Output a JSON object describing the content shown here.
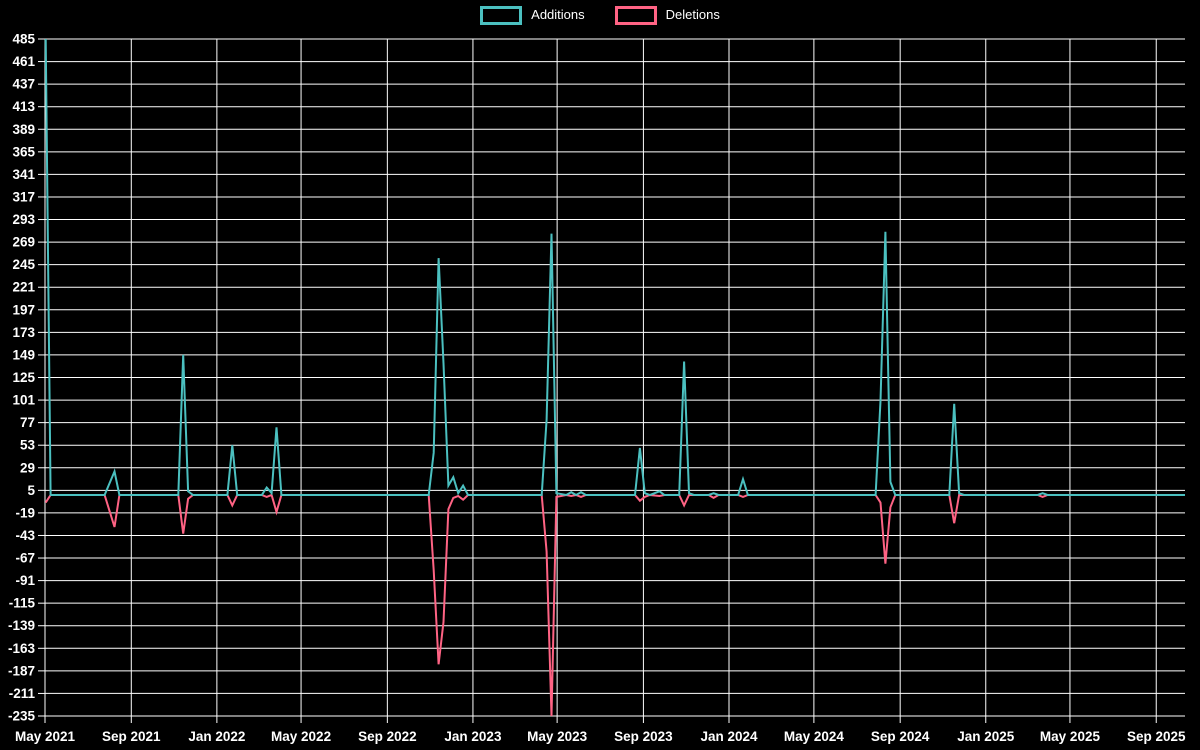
{
  "legend": {
    "items": [
      {
        "label": "Additions",
        "color": "#4bc0c0"
      },
      {
        "label": "Deletions",
        "color": "#ff6384"
      }
    ]
  },
  "chart_data": {
    "type": "line",
    "title": "",
    "xlabel": "",
    "ylabel": "",
    "legend_position": "top",
    "grid": true,
    "background_color": "#000000",
    "grid_color": "#ffffff",
    "text_color": "#ffffff",
    "ylim": [
      -235,
      485
    ],
    "y_tick_step": 24,
    "y_ticks": [
      485,
      461,
      437,
      413,
      389,
      365,
      341,
      317,
      293,
      269,
      245,
      221,
      197,
      173,
      149,
      125,
      101,
      77,
      53,
      29,
      5,
      -19,
      -43,
      -67,
      -91,
      -115,
      -139,
      -163,
      -187,
      -211,
      -235
    ],
    "x_domain": [
      "2021-05-01",
      "2025-10-12"
    ],
    "x_ticks": [
      {
        "label": "May 2021",
        "date": "2021-05-01"
      },
      {
        "label": "Sep 2021",
        "date": "2021-09-01"
      },
      {
        "label": "Jan 2022",
        "date": "2022-01-01"
      },
      {
        "label": "May 2022",
        "date": "2022-05-01"
      },
      {
        "label": "Sep 2022",
        "date": "2022-09-01"
      },
      {
        "label": "Jan 2023",
        "date": "2023-01-01"
      },
      {
        "label": "May 2023",
        "date": "2023-05-01"
      },
      {
        "label": "Sep 2023",
        "date": "2023-09-01"
      },
      {
        "label": "Jan 2024",
        "date": "2024-01-01"
      },
      {
        "label": "May 2024",
        "date": "2024-05-01"
      },
      {
        "label": "Sep 2024",
        "date": "2024-09-01"
      },
      {
        "label": "Jan 2025",
        "date": "2025-01-01"
      },
      {
        "label": "May 2025",
        "date": "2025-05-01"
      },
      {
        "label": "Sep 2025",
        "date": "2025-09-01"
      }
    ],
    "series": [
      {
        "name": "Additions",
        "color": "#4bc0c0",
        "key": "additions"
      },
      {
        "name": "Deletions",
        "color": "#ff6384",
        "key": "deletions"
      }
    ],
    "points": [
      {
        "date": "2021-05-02",
        "additions": 485,
        "deletions": -8
      },
      {
        "date": "2021-05-09",
        "additions": 0,
        "deletions": 0
      },
      {
        "date": "2021-07-25",
        "additions": 0,
        "deletions": 0
      },
      {
        "date": "2021-08-08",
        "additions": 25,
        "deletions": -34
      },
      {
        "date": "2021-08-15",
        "additions": 0,
        "deletions": 0
      },
      {
        "date": "2021-11-07",
        "additions": 0,
        "deletions": 0
      },
      {
        "date": "2021-11-14",
        "additions": 149,
        "deletions": -41
      },
      {
        "date": "2021-11-21",
        "additions": 4,
        "deletions": -4
      },
      {
        "date": "2021-11-28",
        "additions": 0,
        "deletions": 0
      },
      {
        "date": "2022-01-16",
        "additions": 0,
        "deletions": 0
      },
      {
        "date": "2022-01-23",
        "additions": 53,
        "deletions": -11
      },
      {
        "date": "2022-01-30",
        "additions": 0,
        "deletions": 0
      },
      {
        "date": "2022-03-06",
        "additions": 0,
        "deletions": 0
      },
      {
        "date": "2022-03-13",
        "additions": 8,
        "deletions": -2
      },
      {
        "date": "2022-03-20",
        "additions": 2,
        "deletions": 0
      },
      {
        "date": "2022-03-27",
        "additions": 72,
        "deletions": -18
      },
      {
        "date": "2022-04-03",
        "additions": 0,
        "deletions": 0
      },
      {
        "date": "2022-10-30",
        "additions": 0,
        "deletions": 0
      },
      {
        "date": "2022-11-06",
        "additions": 45,
        "deletions": -80
      },
      {
        "date": "2022-11-13",
        "additions": 252,
        "deletions": -180
      },
      {
        "date": "2022-11-20",
        "additions": 140,
        "deletions": -135
      },
      {
        "date": "2022-11-27",
        "additions": 10,
        "deletions": -15
      },
      {
        "date": "2022-12-04",
        "additions": 19,
        "deletions": -3
      },
      {
        "date": "2022-12-11",
        "additions": 2,
        "deletions": -1
      },
      {
        "date": "2022-12-18",
        "additions": 10,
        "deletions": -5
      },
      {
        "date": "2022-12-25",
        "additions": 0,
        "deletions": 0
      },
      {
        "date": "2023-04-09",
        "additions": 0,
        "deletions": 0
      },
      {
        "date": "2023-04-16",
        "additions": 80,
        "deletions": -60
      },
      {
        "date": "2023-04-23",
        "additions": 278,
        "deletions": -235
      },
      {
        "date": "2023-04-30",
        "additions": 2,
        "deletions": -2
      },
      {
        "date": "2023-05-14",
        "additions": 0,
        "deletions": 0
      },
      {
        "date": "2023-05-21",
        "additions": 3,
        "deletions": -1
      },
      {
        "date": "2023-05-28",
        "additions": 0,
        "deletions": 0
      },
      {
        "date": "2023-06-04",
        "additions": 3,
        "deletions": -2
      },
      {
        "date": "2023-06-11",
        "additions": 0,
        "deletions": 0
      },
      {
        "date": "2023-08-20",
        "additions": 0,
        "deletions": 0
      },
      {
        "date": "2023-08-27",
        "additions": 50,
        "deletions": -6
      },
      {
        "date": "2023-09-03",
        "additions": 2,
        "deletions": -2
      },
      {
        "date": "2023-09-10",
        "additions": 0,
        "deletions": 0
      },
      {
        "date": "2023-09-24",
        "additions": 4,
        "deletions": -1
      },
      {
        "date": "2023-10-01",
        "additions": 0,
        "deletions": 0
      },
      {
        "date": "2023-10-22",
        "additions": 0,
        "deletions": 0
      },
      {
        "date": "2023-10-29",
        "additions": 142,
        "deletions": -11
      },
      {
        "date": "2023-11-05",
        "additions": 2,
        "deletions": 0
      },
      {
        "date": "2023-11-12",
        "additions": 0,
        "deletions": 0
      },
      {
        "date": "2023-12-03",
        "additions": 0,
        "deletions": 0
      },
      {
        "date": "2023-12-10",
        "additions": 2,
        "deletions": -3
      },
      {
        "date": "2023-12-17",
        "additions": 0,
        "deletions": 0
      },
      {
        "date": "2024-01-14",
        "additions": 0,
        "deletions": 0
      },
      {
        "date": "2024-01-21",
        "additions": 17,
        "deletions": -2
      },
      {
        "date": "2024-01-28",
        "additions": 0,
        "deletions": 0
      },
      {
        "date": "2024-07-28",
        "additions": 0,
        "deletions": 0
      },
      {
        "date": "2024-08-04",
        "additions": 100,
        "deletions": -8
      },
      {
        "date": "2024-08-11",
        "additions": 280,
        "deletions": -73
      },
      {
        "date": "2024-08-18",
        "additions": 14,
        "deletions": -13
      },
      {
        "date": "2024-08-25",
        "additions": 0,
        "deletions": 0
      },
      {
        "date": "2024-11-10",
        "additions": 0,
        "deletions": 0
      },
      {
        "date": "2024-11-17",
        "additions": 97,
        "deletions": -30
      },
      {
        "date": "2024-11-24",
        "additions": 2,
        "deletions": 0
      },
      {
        "date": "2024-12-01",
        "additions": 0,
        "deletions": 0
      },
      {
        "date": "2025-03-16",
        "additions": 0,
        "deletions": 0
      },
      {
        "date": "2025-03-23",
        "additions": 2,
        "deletions": -2
      },
      {
        "date": "2025-03-30",
        "additions": 0,
        "deletions": 0
      },
      {
        "date": "2025-10-12",
        "additions": 0,
        "deletions": 0
      }
    ]
  }
}
